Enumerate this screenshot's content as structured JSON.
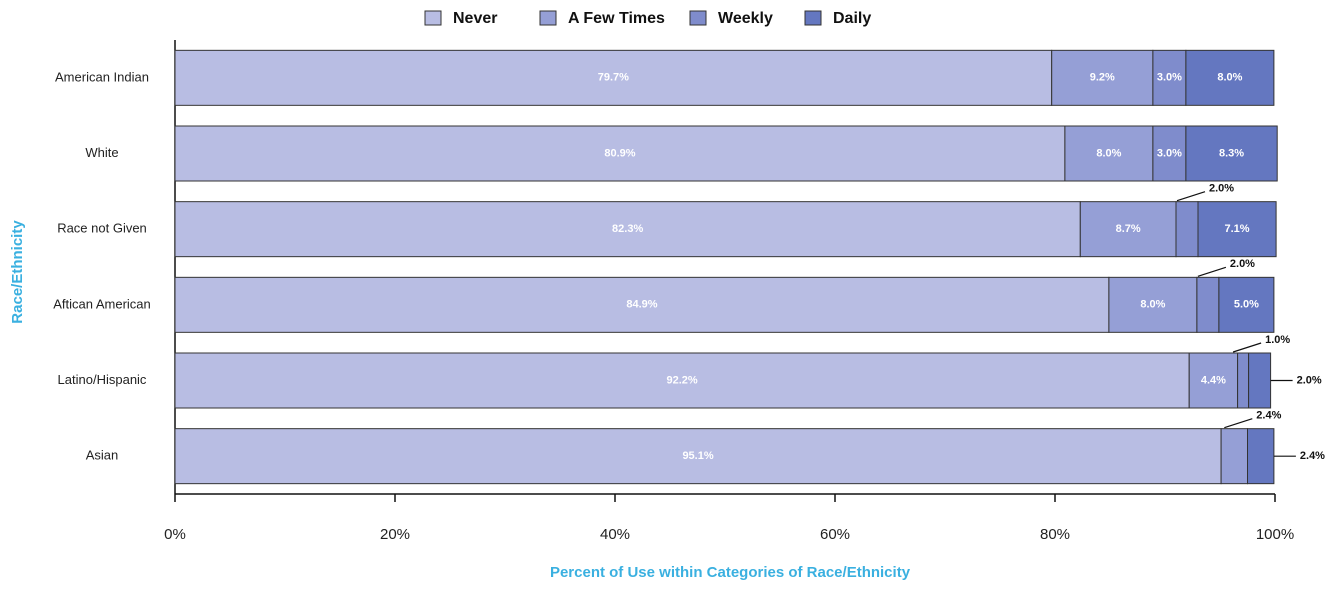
{
  "chart_data": {
    "type": "stacked-bar-horizontal",
    "x_label": "Percent of Use within Categories of Race/Ethnicity",
    "y_label": "Race/Ethnicity",
    "categories": [
      "American Indian",
      "White",
      "Race not Given",
      "Aftican American",
      "Latino/Hispanic",
      "Asian"
    ],
    "series": [
      {
        "name": "Never",
        "color": "#b8bde3",
        "values": [
          79.7,
          80.9,
          82.3,
          84.9,
          92.2,
          95.1
        ],
        "value_labels": [
          "79.7%",
          "80.9%",
          "82.3%",
          "84.9%",
          "92.2%",
          "95.1%"
        ]
      },
      {
        "name": "A Few Times",
        "color": "#959fd6",
        "values": [
          9.2,
          8.0,
          8.7,
          8.0,
          4.4,
          2.4
        ],
        "value_labels": [
          "9.2%",
          "8.0%",
          "8.7%",
          "8.0%",
          "4.4%",
          "2.4%"
        ]
      },
      {
        "name": "Weekly",
        "color": "#7f8ccc",
        "values": [
          3.0,
          3.0,
          2.0,
          2.0,
          1.0,
          null
        ],
        "value_labels": [
          "3.0%",
          "3.0%",
          "2.0%",
          "2.0%",
          "1.0%",
          null
        ]
      },
      {
        "name": "Daily",
        "color": "#6477c0",
        "values": [
          8.0,
          8.3,
          7.1,
          5.0,
          2.0,
          2.4
        ],
        "value_labels": [
          "8.0%",
          "8.3%",
          "7.1%",
          "5.0%",
          "2.0%",
          "2.4%"
        ]
      }
    ],
    "xlim": [
      0,
      100
    ],
    "xticks": [
      {
        "value": 0,
        "label": "0%"
      },
      {
        "value": 20,
        "label": "20%"
      },
      {
        "value": 40,
        "label": "40%"
      },
      {
        "value": 60,
        "label": "60%"
      },
      {
        "value": 80,
        "label": "80%"
      },
      {
        "value": 100,
        "label": "100%"
      }
    ],
    "legend": "top"
  }
}
